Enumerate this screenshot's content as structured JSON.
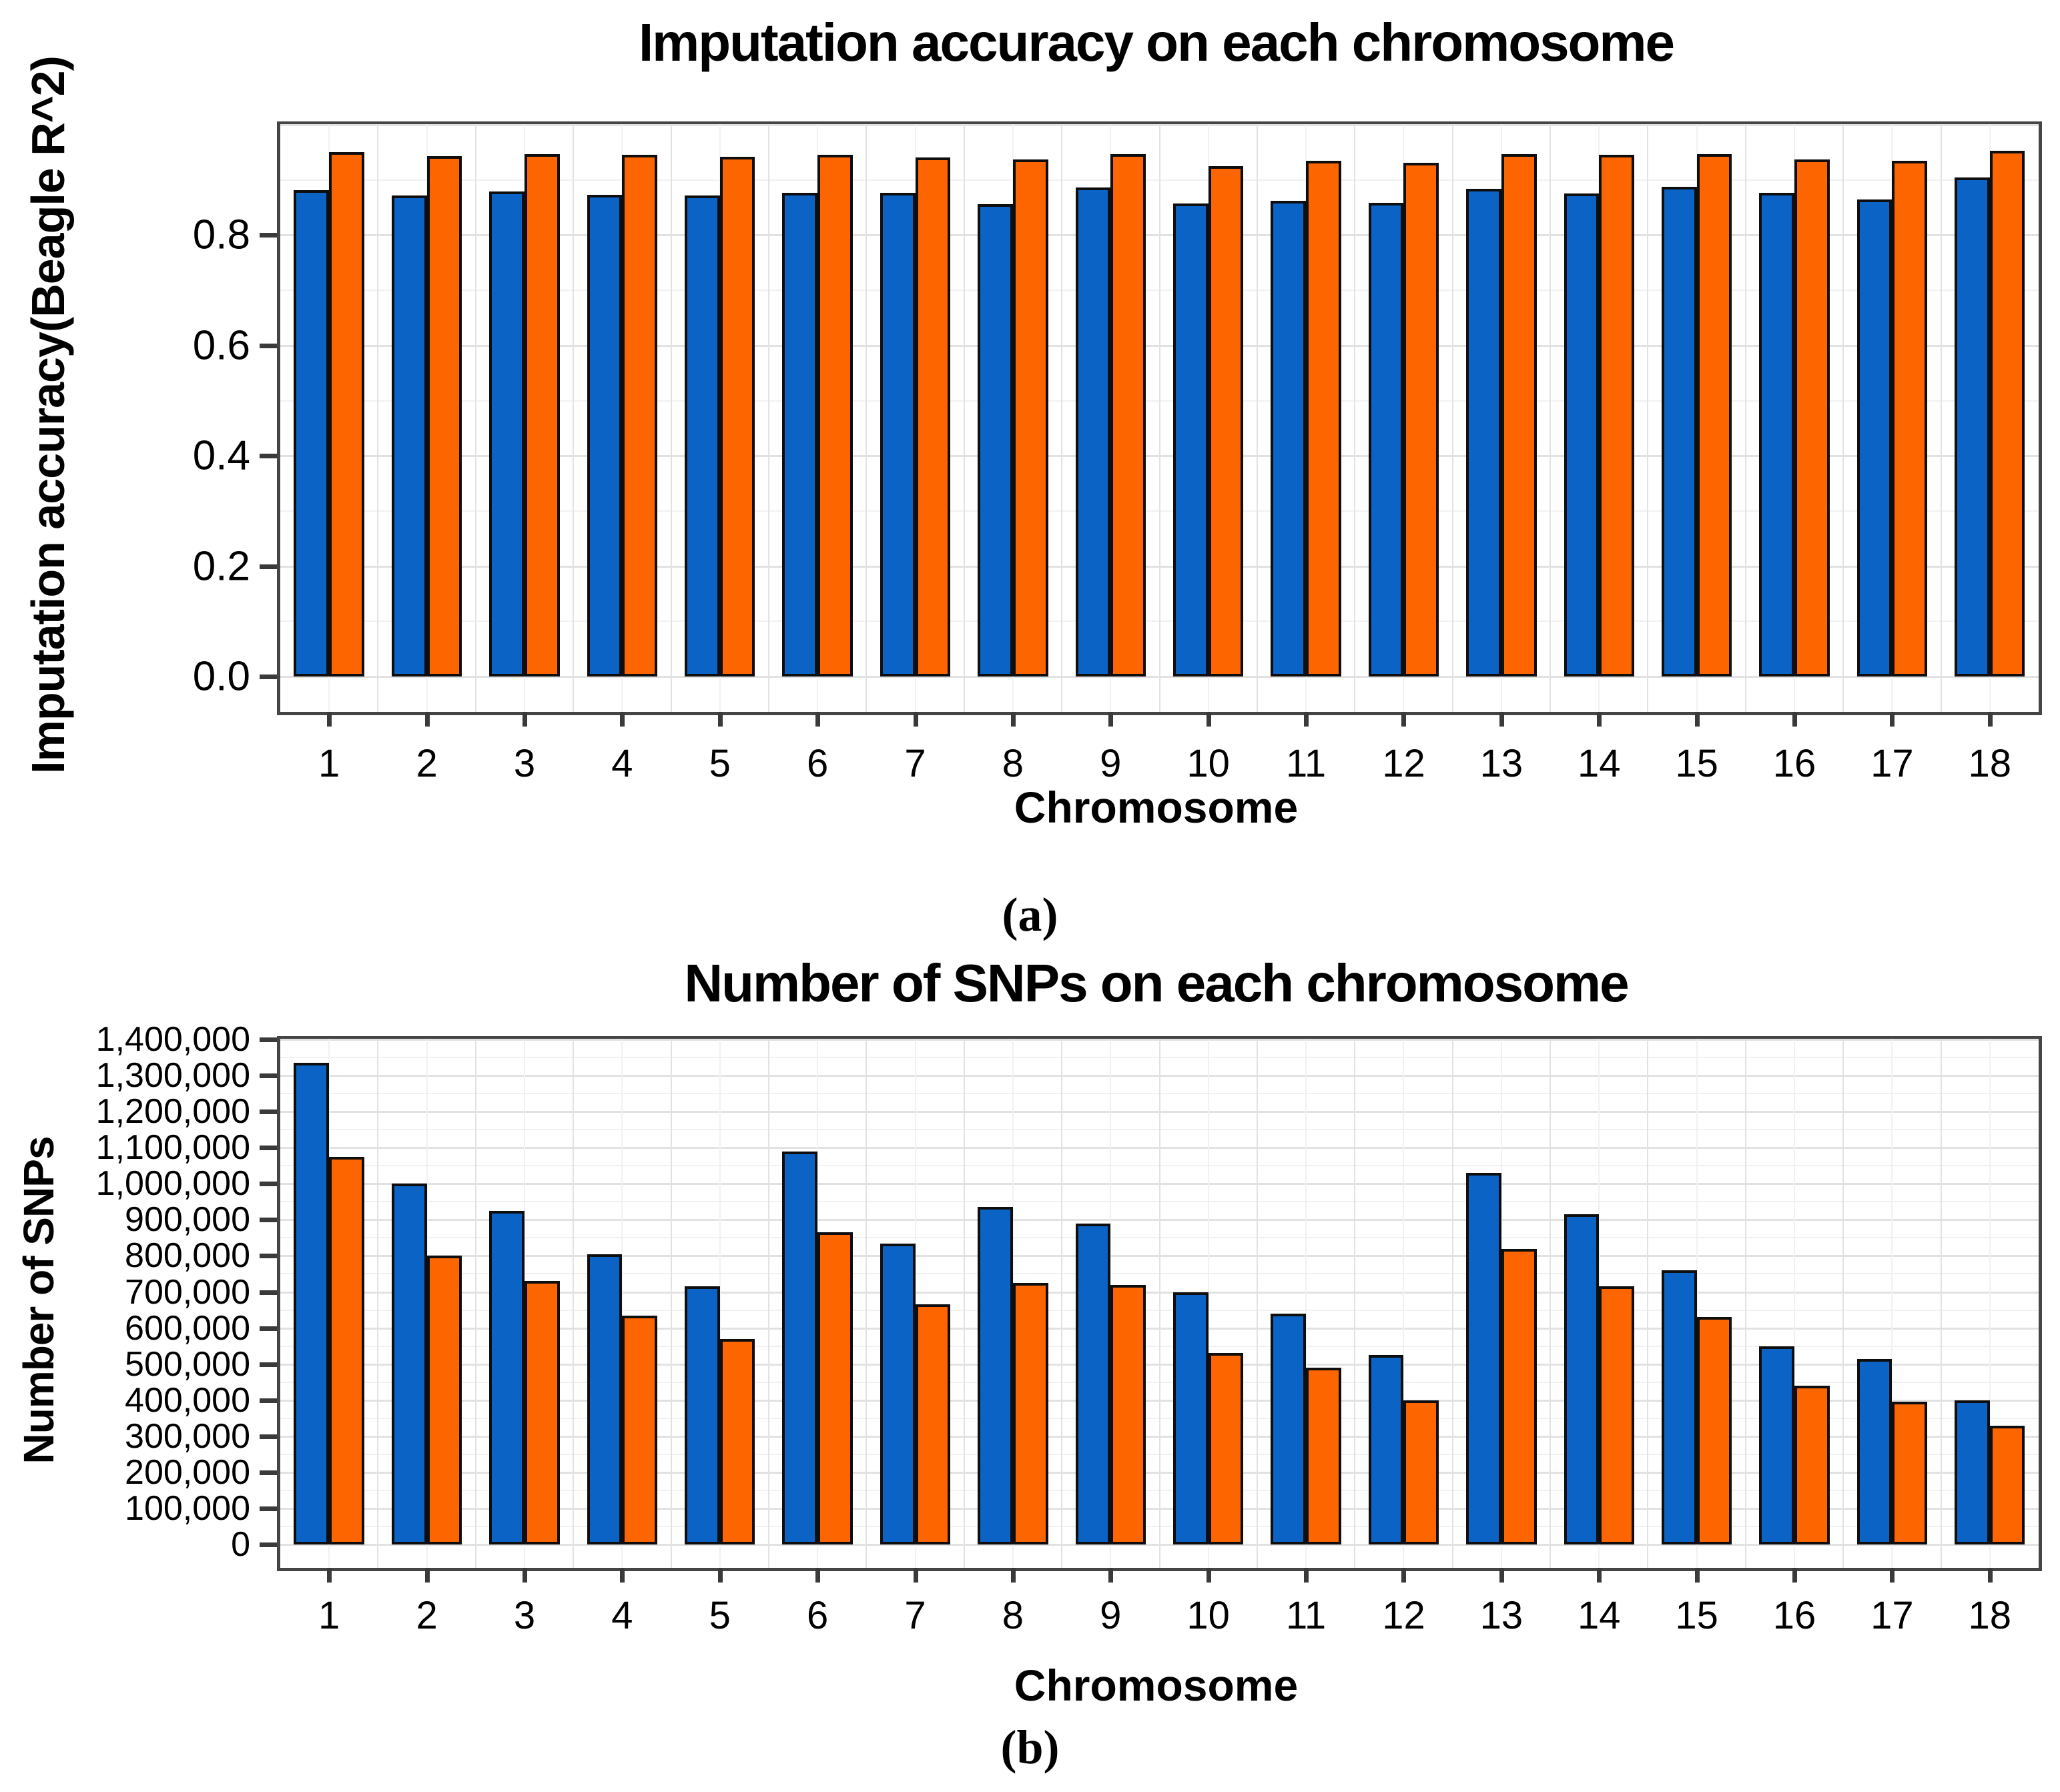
{
  "figure": {
    "caption_a": "(a)",
    "caption_b": "(b)"
  },
  "colors": {
    "series_blue": "#0b63c5",
    "series_orange": "#fd6500",
    "bar_border": "#0e0e0e",
    "plot_border": "#454545",
    "grid_minor": "#f1f1f1",
    "grid_major": "#e2e2e2",
    "tick_mark": "#3a3a3a",
    "text": "#000000"
  },
  "chart_data": [
    {
      "id": "chart-accuracy",
      "type": "bar",
      "title": "Imputation accuracy on each chromosome",
      "xlabel": "Chromosome",
      "ylabel": "Imputation accuracy(Beagle R^2)",
      "categories": [
        "1",
        "2",
        "3",
        "4",
        "5",
        "6",
        "7",
        "8",
        "9",
        "10",
        "11",
        "12",
        "13",
        "14",
        "15",
        "16",
        "17",
        "18"
      ],
      "series": [
        {
          "name": "series_blue",
          "values": [
            0.882,
            0.872,
            0.879,
            0.873,
            0.872,
            0.877,
            0.877,
            0.856,
            0.886,
            0.857,
            0.862,
            0.859,
            0.884,
            0.876,
            0.888,
            0.877,
            0.864,
            0.905
          ]
        },
        {
          "name": "series_orange",
          "values": [
            0.951,
            0.943,
            0.947,
            0.946,
            0.942,
            0.945,
            0.941,
            0.937,
            0.947,
            0.925,
            0.935,
            0.931,
            0.947,
            0.945,
            0.947,
            0.937,
            0.935,
            0.953
          ]
        }
      ],
      "ylim": [
        0,
        1.0
      ],
      "ytick_values": [
        0.0,
        0.2,
        0.4,
        0.6,
        0.8
      ],
      "ytick_labels": [
        "0.0",
        "0.2",
        "0.4",
        "0.6",
        "0.8"
      ],
      "grid": "on",
      "legend": "none"
    },
    {
      "id": "chart-snps",
      "type": "bar",
      "title": "Number of SNPs on each chromosome",
      "xlabel": "Chromosome",
      "ylabel": "Number of SNPs",
      "categories": [
        "1",
        "2",
        "3",
        "4",
        "5",
        "6",
        "7",
        "8",
        "9",
        "10",
        "11",
        "12",
        "13",
        "14",
        "15",
        "16",
        "17",
        "18"
      ],
      "series": [
        {
          "name": "series_blue",
          "values": [
            1335000,
            1000000,
            925000,
            805000,
            715000,
            1090000,
            835000,
            935000,
            890000,
            700000,
            640000,
            525000,
            1030000,
            915000,
            760000,
            550000,
            515000,
            400000
          ]
        },
        {
          "name": "series_orange",
          "values": [
            1075000,
            800000,
            730000,
            635000,
            570000,
            865000,
            665000,
            725000,
            720000,
            530000,
            490000,
            400000,
            820000,
            715000,
            630000,
            440000,
            395000,
            330000
          ]
        }
      ],
      "ylim": [
        0,
        1400000
      ],
      "ytick_values": [
        0,
        100000,
        200000,
        300000,
        400000,
        500000,
        600000,
        700000,
        800000,
        900000,
        1000000,
        1100000,
        1200000,
        1300000,
        1400000
      ],
      "ytick_labels": [
        "0",
        "100,000",
        "200,000",
        "300,000",
        "400,000",
        "500,000",
        "600,000",
        "700,000",
        "800,000",
        "900,000",
        "1,000,000",
        "1,100,000",
        "1,200,000",
        "1,300,000",
        "1,400,000"
      ],
      "grid": "on",
      "legend": "none"
    }
  ]
}
